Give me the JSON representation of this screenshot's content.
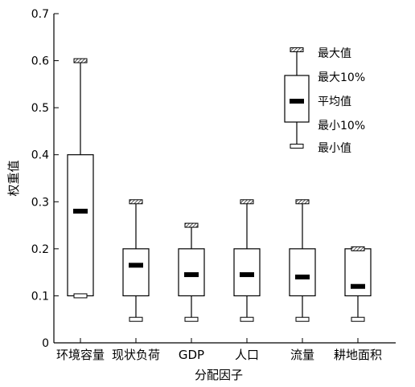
{
  "chart_data": {
    "type": "box",
    "ylabel": "权重值",
    "xlabel": "分配因子",
    "ylim": [
      0,
      0.7
    ],
    "yticks": [
      0,
      0.1,
      0.2,
      0.3,
      0.4,
      0.5,
      0.6,
      0.7
    ],
    "ytick_labels": [
      "0",
      "0.1",
      "0.2",
      "0.3",
      "0.4",
      "0.5",
      "0.6",
      "0.7"
    ],
    "categories": [
      "环境容量",
      "现状负荷",
      "GDP",
      "人口",
      "流量",
      "耕地面积"
    ],
    "boxes": [
      {
        "max": 0.6,
        "p90": 0.4,
        "mean": 0.28,
        "p10": 0.1,
        "min": 0.1
      },
      {
        "max": 0.3,
        "p90": 0.2,
        "mean": 0.165,
        "p10": 0.1,
        "min": 0.05
      },
      {
        "max": 0.25,
        "p90": 0.2,
        "mean": 0.145,
        "p10": 0.1,
        "min": 0.05
      },
      {
        "max": 0.3,
        "p90": 0.2,
        "mean": 0.145,
        "p10": 0.1,
        "min": 0.05
      },
      {
        "max": 0.3,
        "p90": 0.2,
        "mean": 0.14,
        "p10": 0.1,
        "min": 0.05
      },
      {
        "max": 0.2,
        "p90": 0.2,
        "mean": 0.12,
        "p10": 0.1,
        "min": 0.05
      }
    ],
    "legend": {
      "placement": "top-right",
      "entries": [
        "最大值",
        "最大10%",
        "平均值",
        "最小10%",
        "最小值"
      ]
    },
    "grid": false
  }
}
